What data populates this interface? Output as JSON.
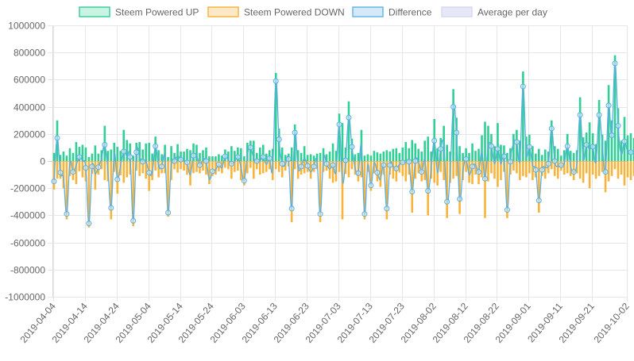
{
  "chart_data": {
    "type": "bar",
    "title": "",
    "xlabel": "",
    "ylabel": "",
    "ylim": [
      -1000000,
      1000000
    ],
    "yticks": [
      "1000000",
      "800000",
      "600000",
      "400000",
      "200000",
      "0",
      "-200000",
      "-400000",
      "-600000",
      "-800000",
      "-1000000"
    ],
    "ytick_values": [
      1000000,
      800000,
      600000,
      400000,
      200000,
      0,
      -200000,
      -400000,
      -600000,
      -800000,
      -1000000
    ],
    "x_start": "2019-04-04",
    "x_end": "2019-10-02",
    "xticks": [
      "2019-04-04",
      "2019-04-14",
      "2019-04-24",
      "2019-05-04",
      "2019-05-14",
      "2019-05-24",
      "2019-06-03",
      "2019-06-13",
      "2019-06-23",
      "2019-07-03",
      "2019-07-13",
      "2019-07-23",
      "2019-08-02",
      "2019-08-12",
      "2019-08-22",
      "2019-09-01",
      "2019-09-11",
      "2019-09-21",
      "2019-10-02"
    ],
    "grid": true,
    "legend_position": "top",
    "legend": [
      {
        "label": "Steem Powered UP",
        "fill": "#c9f3e3",
        "stroke": "#3ecf9c"
      },
      {
        "label": "Steem Powered DOWN",
        "fill": "#fde9c8",
        "stroke": "#f5b542"
      },
      {
        "label": "Difference",
        "fill": "#d4e9f8",
        "stroke": "#6ab7e3"
      },
      {
        "label": "Average per day",
        "fill": "#e6e8f8",
        "stroke": "#d6daf2"
      }
    ],
    "colors": {
      "up": "#2fcf95",
      "down": "#f8b33a",
      "difference": "#5aaee0",
      "grid": "#e6e6e6",
      "axis_text": "#666666"
    },
    "series": [
      {
        "name": "Steem Powered UP",
        "values": [
          60000,
          300000,
          45000,
          70000,
          40000,
          95000,
          60000,
          140000,
          105000,
          120000,
          100000,
          30000,
          55000,
          115000,
          55000,
          80000,
          260000,
          75000,
          85000,
          135000,
          105000,
          75000,
          230000,
          155000,
          130000,
          40000,
          135000,
          140000,
          85000,
          130000,
          135000,
          55000,
          180000,
          80000,
          50000,
          120000,
          30000,
          110000,
          60000,
          125000,
          70000,
          70000,
          90000,
          80000,
          130000,
          120000,
          60000,
          80000,
          100000,
          35000,
          35000,
          35000,
          50000,
          40000,
          85000,
          70000,
          110000,
          75000,
          100000,
          95000,
          35000,
          135000,
          150000,
          150000,
          60000,
          100000,
          120000,
          55000,
          80000,
          90000,
          650000,
          240000,
          100000,
          45000,
          55000,
          100000,
          270000,
          80000,
          60000,
          110000,
          45000,
          50000,
          40000,
          55000,
          60000,
          95000,
          50000,
          70000,
          130000,
          75000,
          350000,
          280000,
          100000,
          440000,
          165000,
          50000,
          60000,
          230000,
          40000,
          50000,
          40000,
          75000,
          65000,
          55000,
          70000,
          80000,
          70000,
          90000,
          95000,
          60000,
          100000,
          140000,
          95000,
          155000,
          130000,
          90000,
          70000,
          150000,
          180000,
          70000,
          310000,
          95000,
          170000,
          260000,
          120000,
          70000,
          530000,
          320000,
          110000,
          60000,
          95000,
          60000,
          130000,
          75000,
          90000,
          190000,
          290000,
          260000,
          200000,
          110000,
          280000,
          120000,
          115000,
          60000,
          95000,
          200000,
          230000,
          150000,
          660000,
          180000,
          195000,
          110000,
          55000,
          90000,
          45000,
          85000,
          70000,
          300000,
          110000,
          90000,
          40000,
          80000,
          200000,
          75000,
          60000,
          80000,
          470000,
          175000,
          210000,
          285000,
          205000,
          125000,
          450000,
          195000,
          150000,
          560000,
          300000,
          780000,
          390000,
          150000,
          325000,
          190000,
          205000,
          170000,
          60000,
          140000,
          190000,
          115000
        ],
        "color": "#2fcf95"
      },
      {
        "name": "Steem Powered DOWN",
        "values": [
          -210000,
          -130000,
          -130000,
          -200000,
          -430000,
          -110000,
          -140000,
          -170000,
          -75000,
          -120000,
          -150000,
          -490000,
          -95000,
          -210000,
          -100000,
          -60000,
          -140000,
          -150000,
          -430000,
          -80000,
          -240000,
          -105000,
          -160000,
          -120000,
          -100000,
          -480000,
          -70000,
          -110000,
          -90000,
          -130000,
          -220000,
          -140000,
          -70000,
          -120000,
          -90000,
          -90000,
          -410000,
          -140000,
          -60000,
          -85000,
          -60000,
          -70000,
          -100000,
          -180000,
          -90000,
          -80000,
          -90000,
          -70000,
          -100000,
          -170000,
          -110000,
          -100000,
          -75000,
          -90000,
          -50000,
          -60000,
          -130000,
          -80000,
          -70000,
          -140000,
          -180000,
          -90000,
          -50000,
          -130000,
          -60000,
          -100000,
          -90000,
          -80000,
          -60000,
          -140000,
          -60000,
          -80000,
          -120000,
          -70000,
          -40000,
          -450000,
          -60000,
          -130000,
          -100000,
          -90000,
          -80000,
          -130000,
          -80000,
          -60000,
          -450000,
          -80000,
          -70000,
          -130000,
          -160000,
          -150000,
          -80000,
          -430000,
          -95000,
          -120000,
          -60000,
          -100000,
          -150000,
          -120000,
          -430000,
          -80000,
          -220000,
          -90000,
          -150000,
          -190000,
          -100000,
          -430000,
          -100000,
          -130000,
          -150000,
          -85000,
          -110000,
          -150000,
          -100000,
          -380000,
          -130000,
          -90000,
          -150000,
          -140000,
          -400000,
          -130000,
          -160000,
          -180000,
          -80000,
          -140000,
          -420000,
          -160000,
          -130000,
          -110000,
          -390000,
          -140000,
          -80000,
          -160000,
          -170000,
          -100000,
          -170000,
          -120000,
          -420000,
          -150000,
          -90000,
          -130000,
          -190000,
          -140000,
          -80000,
          -420000,
          -100000,
          -70000,
          -90000,
          -140000,
          -110000,
          -120000,
          -90000,
          -140000,
          -120000,
          -380000,
          -110000,
          -130000,
          -90000,
          -60000,
          -110000,
          -130000,
          -70000,
          -100000,
          -90000,
          -110000,
          -140000,
          -90000,
          -130000,
          -160000,
          -90000,
          -200000,
          -100000,
          -130000,
          -110000,
          -80000,
          -230000,
          -150000,
          -110000,
          -60000,
          -130000,
          -100000,
          -180000,
          -120000,
          -140000,
          -110000,
          -90000,
          -130000,
          -70000
        ],
        "color": "#f8b33a"
      },
      {
        "name": "Difference",
        "color": "#5aaee0"
      }
    ]
  }
}
